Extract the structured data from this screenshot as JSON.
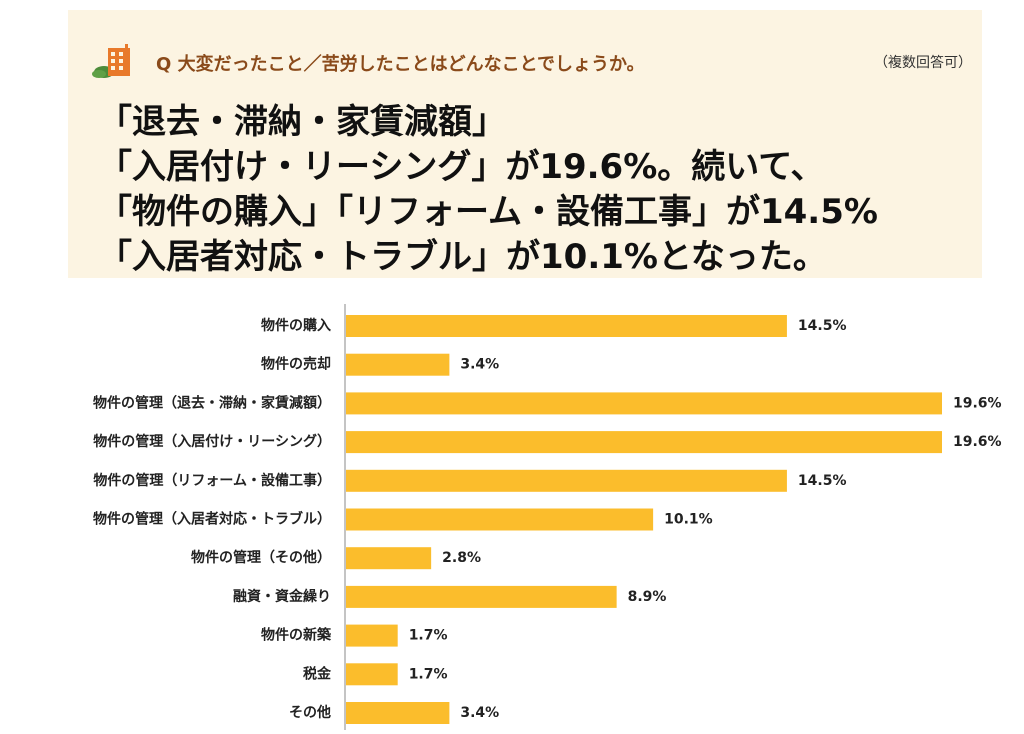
{
  "header": {
    "question": "Q 大変だったこと／苦労したことはどんなことでしょうか。",
    "note": "（複数回答可）",
    "headline_lines": [
      "「退去・滞納・家賃減額」",
      "「入居付け・リーシング」が19.6%。続いて、",
      "「物件の購入」「リフォーム・設備工事」が14.5%",
      "「入居者対応・トラブル」が10.1%となった。"
    ],
    "icon": "building-icon",
    "colors": {
      "panel": "#fcf4e2",
      "question": "#8a4a1a",
      "icon_building": "#e8792b",
      "icon_tree": "#4c8c3a"
    }
  },
  "chart_data": {
    "type": "bar",
    "orientation": "horizontal",
    "title": "",
    "xlabel": "",
    "ylabel": "",
    "unit": "%",
    "xlim": [
      0,
      19.6
    ],
    "grid": false,
    "legend": "none",
    "bar_color": "#fbbd2c",
    "categories": [
      "物件の購入",
      "物件の売却",
      "物件の管理（退去・滞納・家賃減額）",
      "物件の管理（入居付け・リーシング）",
      "物件の管理（リフォーム・設備工事）",
      "物件の管理（入居者対応・トラブル）",
      "物件の管理（その他）",
      "融資・資金繰り",
      "物件の新築",
      "税金",
      "その他"
    ],
    "values": [
      14.5,
      3.4,
      19.6,
      19.6,
      14.5,
      10.1,
      2.8,
      8.9,
      1.7,
      1.7,
      3.4
    ],
    "data_labels": [
      "14.5%",
      "3.4%",
      "19.6%",
      "19.6%",
      "14.5%",
      "10.1%",
      "2.8%",
      "8.9%",
      "1.7%",
      "1.7%",
      "3.4%"
    ]
  }
}
